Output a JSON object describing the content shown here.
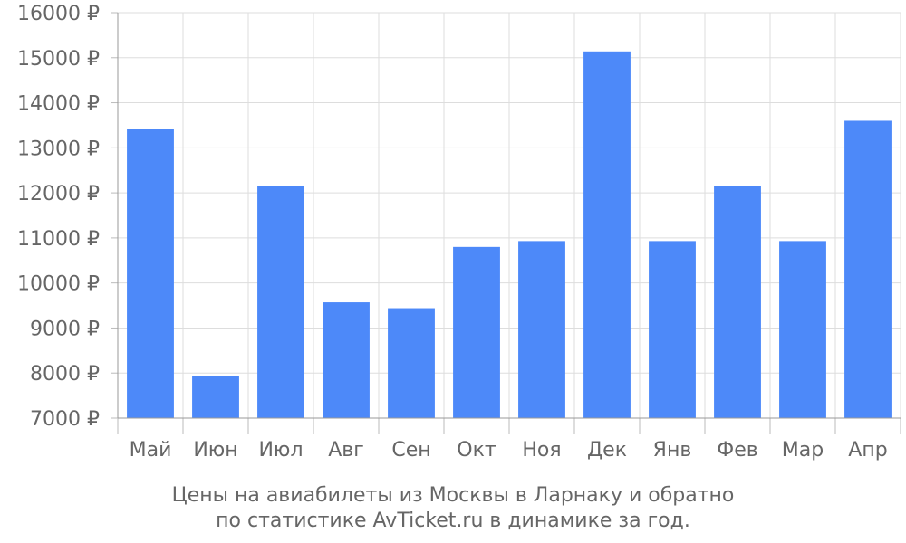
{
  "chart_data": {
    "type": "bar",
    "categories": [
      "Май",
      "Июн",
      "Июл",
      "Авг",
      "Сен",
      "Окт",
      "Ноя",
      "Дек",
      "Янв",
      "Фев",
      "Мар",
      "Апр"
    ],
    "values": [
      13420,
      7930,
      12150,
      9570,
      9440,
      10800,
      10930,
      15140,
      10930,
      12150,
      10930,
      13600
    ],
    "ylim": [
      7000,
      16000
    ],
    "yticks": [
      7000,
      8000,
      9000,
      10000,
      11000,
      12000,
      13000,
      14000,
      15000,
      16000
    ],
    "ytick_labels": [
      "7000 ₽",
      "8000 ₽",
      "9000 ₽",
      "10000 ₽",
      "11000 ₽",
      "12000 ₽",
      "13000 ₽",
      "14000 ₽",
      "15000 ₽",
      "16000 ₽"
    ],
    "bar_color": "#4d89f9",
    "grid": true
  },
  "caption": {
    "line1": "Цены на авиабилеты из Москвы в Ларнаку и обратно",
    "line2": "по статистике AvTicket.ru в динамике за год."
  }
}
